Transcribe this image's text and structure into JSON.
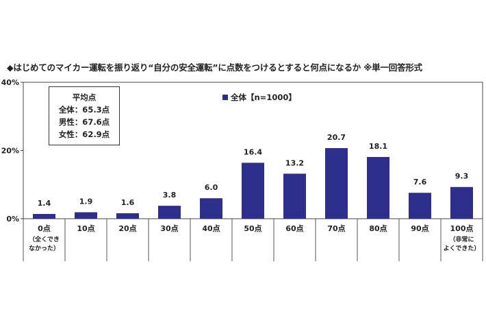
{
  "title": "◆はじめてのマイカー運転を振り返り“自分の安全運転”に点数をつけるとすると何点になるか ※単一回答形式",
  "avg_box": {
    "heading": "平均点",
    "lines": [
      "全体：65.3点",
      "男性：67.6点",
      "女性：62.9点"
    ]
  },
  "legend": {
    "label": "全体【n=1000】",
    "color": "#2e2e8c"
  },
  "chart_data": {
    "type": "bar",
    "categories": [
      "0点",
      "10点",
      "20点",
      "30点",
      "40点",
      "50点",
      "60点",
      "70点",
      "80点",
      "90点",
      "100点"
    ],
    "category_sublabels": [
      [
        "（全くでき",
        "なかった）"
      ],
      [],
      [],
      [],
      [],
      [],
      [],
      [],
      [],
      [],
      [
        "（非常に",
        "よくできた）"
      ]
    ],
    "series": [
      {
        "name": "全体【n=1000】",
        "values": [
          1.4,
          1.9,
          1.6,
          3.8,
          6.0,
          16.4,
          13.2,
          20.7,
          18.1,
          7.6,
          9.3
        ],
        "labels": [
          "1.4",
          "1.9",
          "1.6",
          "3.8",
          "6.0",
          "16.4",
          "13.2",
          "20.7",
          "18.1",
          "7.6",
          "9.3"
        ]
      }
    ],
    "ylim": [
      0,
      40
    ],
    "yticks": [
      0,
      20,
      40
    ],
    "ytick_labels": [
      "0%",
      "20%",
      "40%"
    ],
    "bar_color": "#2e2e8c",
    "grid": false,
    "legend_position": "top"
  }
}
